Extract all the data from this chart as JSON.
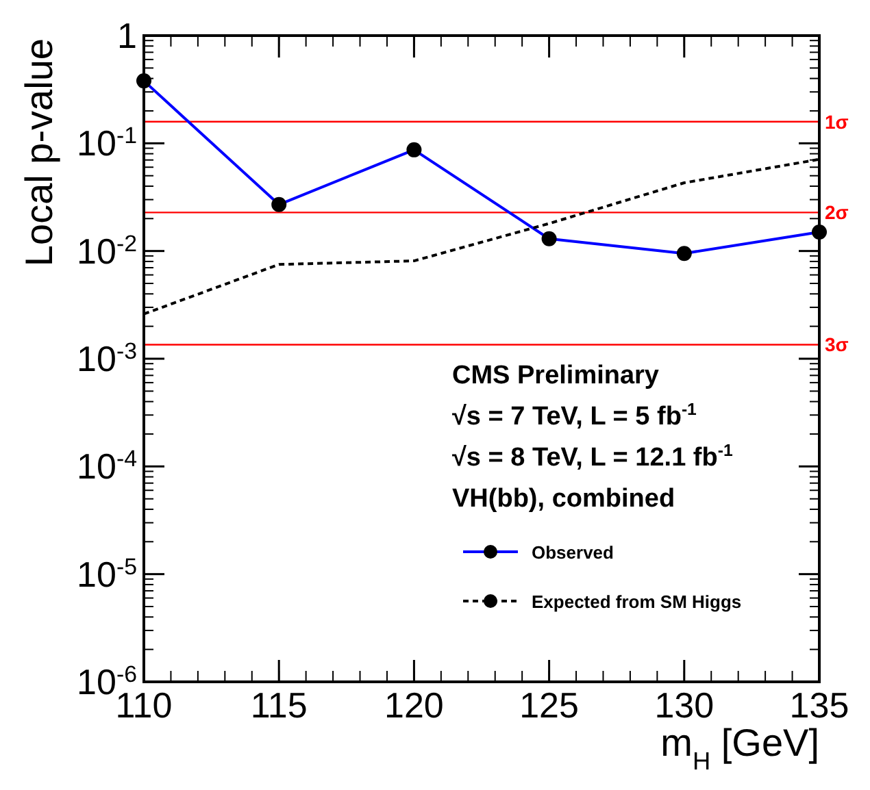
{
  "chart_data": {
    "type": "line",
    "xlabel": "m$_{H}$ [GeV]",
    "ylabel": "Local p-value",
    "log": "y",
    "xlim": [
      110,
      135
    ],
    "xticks": [
      110,
      115,
      120,
      125,
      130,
      135
    ],
    "ylim": [
      1e-06,
      1
    ],
    "yticks": [
      {
        "value": 1e-06,
        "label": "10$^{-6}$"
      },
      {
        "value": 1e-05,
        "label": "10$^{-5}$"
      },
      {
        "value": 0.0001,
        "label": "10$^{-4}$"
      },
      {
        "value": 0.001,
        "label": "10$^{-3}$"
      },
      {
        "value": 0.01,
        "label": "10$^{-2}$"
      },
      {
        "value": 0.1,
        "label": "10$^{-1}$"
      },
      1
    ],
    "x": [
      110,
      115,
      120,
      125,
      130,
      135
    ],
    "series": [
      {
        "name": "Observed",
        "color": "#0000ff",
        "values": [
          0.38,
          0.027,
          0.087,
          0.013,
          0.0095,
          0.015
        ],
        "marker": "circle",
        "line_style": "solid"
      },
      {
        "name": "Expected from SM Higgs",
        "color": "#000000",
        "values": [
          0.0026,
          0.0075,
          0.0081,
          0.018,
          0.043,
          0.071
        ],
        "marker": "none",
        "line_style": "dashed"
      }
    ],
    "ref_lines": [
      {
        "axis": "y",
        "value": 0.1587,
        "label": "1σ",
        "color": "#ff0000"
      },
      {
        "axis": "y",
        "value": 0.0228,
        "label": "2σ",
        "color": "#ff0000"
      },
      {
        "axis": "y",
        "value": 0.00135,
        "label": "3σ",
        "color": "#ff0000"
      }
    ],
    "annotations": [
      "CMS Preliminary",
      "√s = 7 TeV, L = 5 fb$^{-1}$",
      "√s = 8 TeV, L = 12.1 fb$^{-1}$",
      "VH(bb), combined"
    ],
    "legend": "bottom right",
    "grid": false
  }
}
